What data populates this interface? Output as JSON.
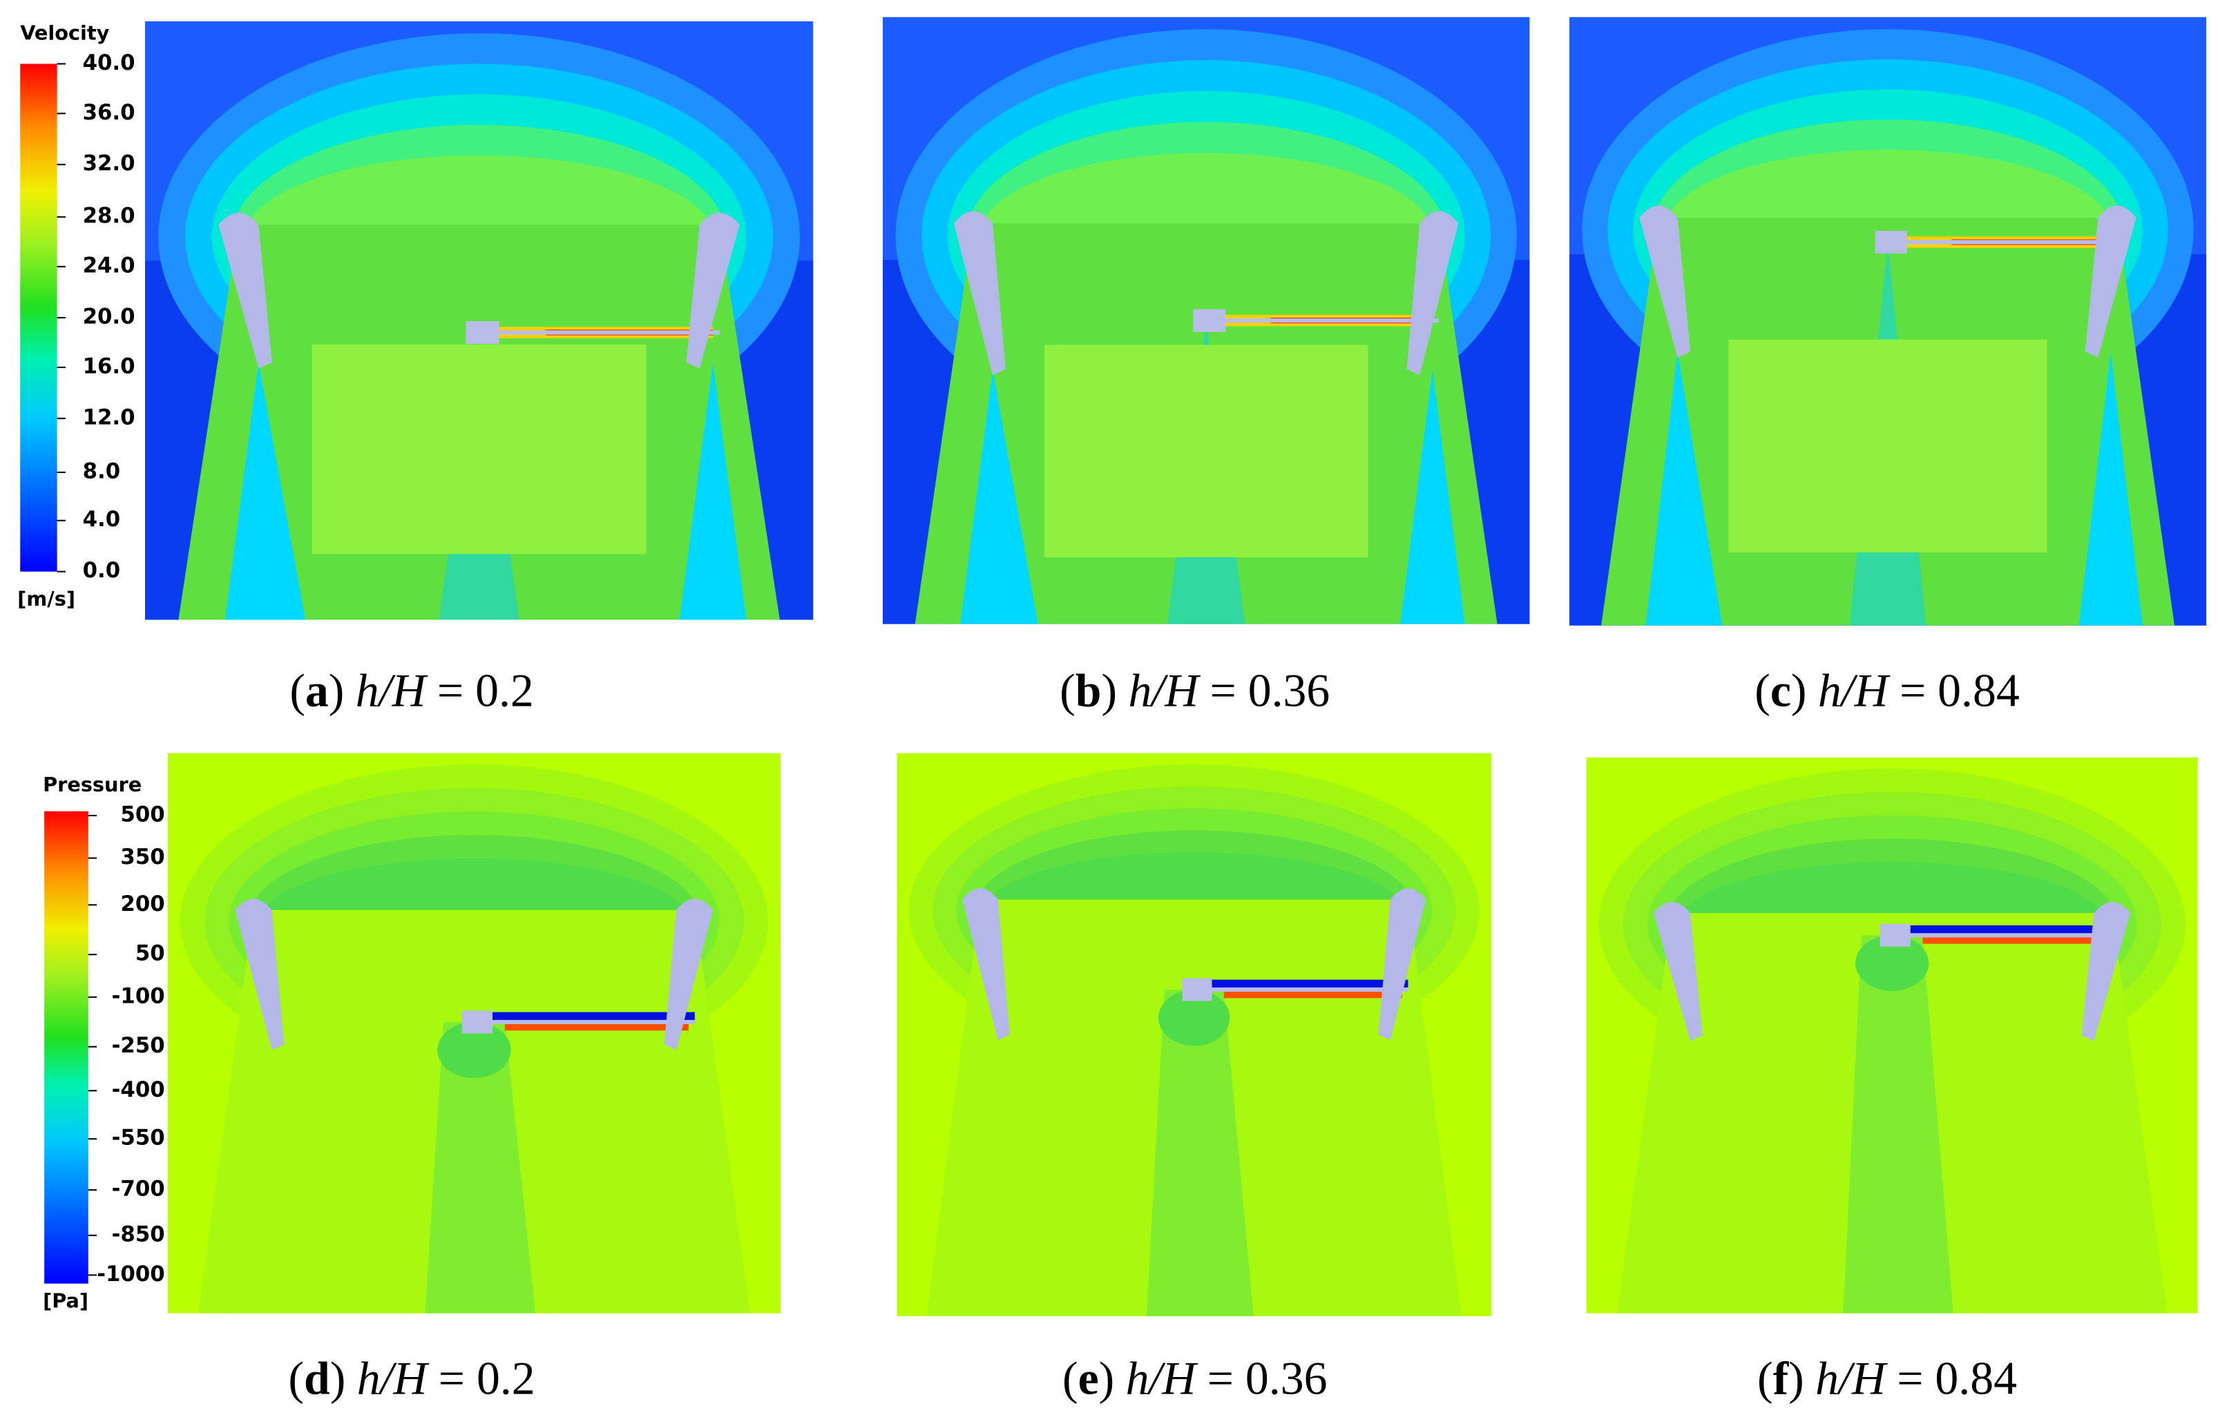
{
  "velocity_legend": {
    "title": "Velocity",
    "ticks": [
      "40.0",
      "36.0",
      "32.0",
      "28.0",
      "24.0",
      "20.0",
      "16.0",
      "12.0",
      "8.0",
      "4.0",
      "0.0"
    ],
    "unit": "[m/s]"
  },
  "pressure_legend": {
    "title": "Pressure",
    "ticks": [
      "500",
      "350",
      "200",
      "50",
      "-100",
      "-250",
      "-400",
      "-550",
      "-700",
      "-850",
      "-1000"
    ],
    "unit": "[Pa]"
  },
  "panels": [
    {
      "caption": [
        "(",
        "a",
        ")",
        "h/H",
        "= 0.2"
      ]
    },
    {
      "caption": [
        "(",
        "b",
        ")",
        "h/H",
        "= 0.36"
      ]
    },
    {
      "caption": [
        "(",
        "c",
        ")",
        "h/H",
        "= 0.84"
      ]
    },
    {
      "caption": [
        "(",
        "d",
        ")",
        "h/H",
        "= 0.2"
      ]
    },
    {
      "caption": [
        "(",
        "e",
        ")",
        "h/H",
        "= 0.36"
      ]
    },
    {
      "caption": [
        "(",
        "f",
        ")",
        "h/H",
        "= 0.84"
      ]
    }
  ]
}
